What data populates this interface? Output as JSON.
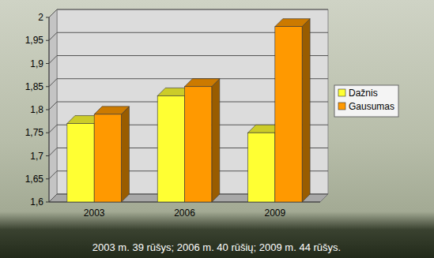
{
  "chart_data": {
    "type": "bar",
    "categories": [
      "2003",
      "2006",
      "2009"
    ],
    "series": [
      {
        "name": "Dažnis",
        "color": "#ffff33",
        "values": [
          1.77,
          1.83,
          1.75
        ]
      },
      {
        "name": "Gausumas",
        "color": "#ff9900",
        "values": [
          1.79,
          1.85,
          1.98
        ]
      }
    ],
    "ylim": [
      1.6,
      2
    ],
    "yticks": [
      {
        "value": 1.6,
        "label": "1,6"
      },
      {
        "value": 1.65,
        "label": "1,65"
      },
      {
        "value": 1.7,
        "label": "1,7"
      },
      {
        "value": 1.75,
        "label": "1,75"
      },
      {
        "value": 1.8,
        "label": "1,8"
      },
      {
        "value": 1.85,
        "label": "1,85"
      },
      {
        "value": 1.9,
        "label": "1,9"
      },
      {
        "value": 1.95,
        "label": "1,95"
      },
      2
    ],
    "grid": true,
    "legend": "right",
    "annotations": [
      "2003 m. 39 rūšys; 2006 m. 40 rūšių; 2009 m. 44 rūšys."
    ]
  }
}
